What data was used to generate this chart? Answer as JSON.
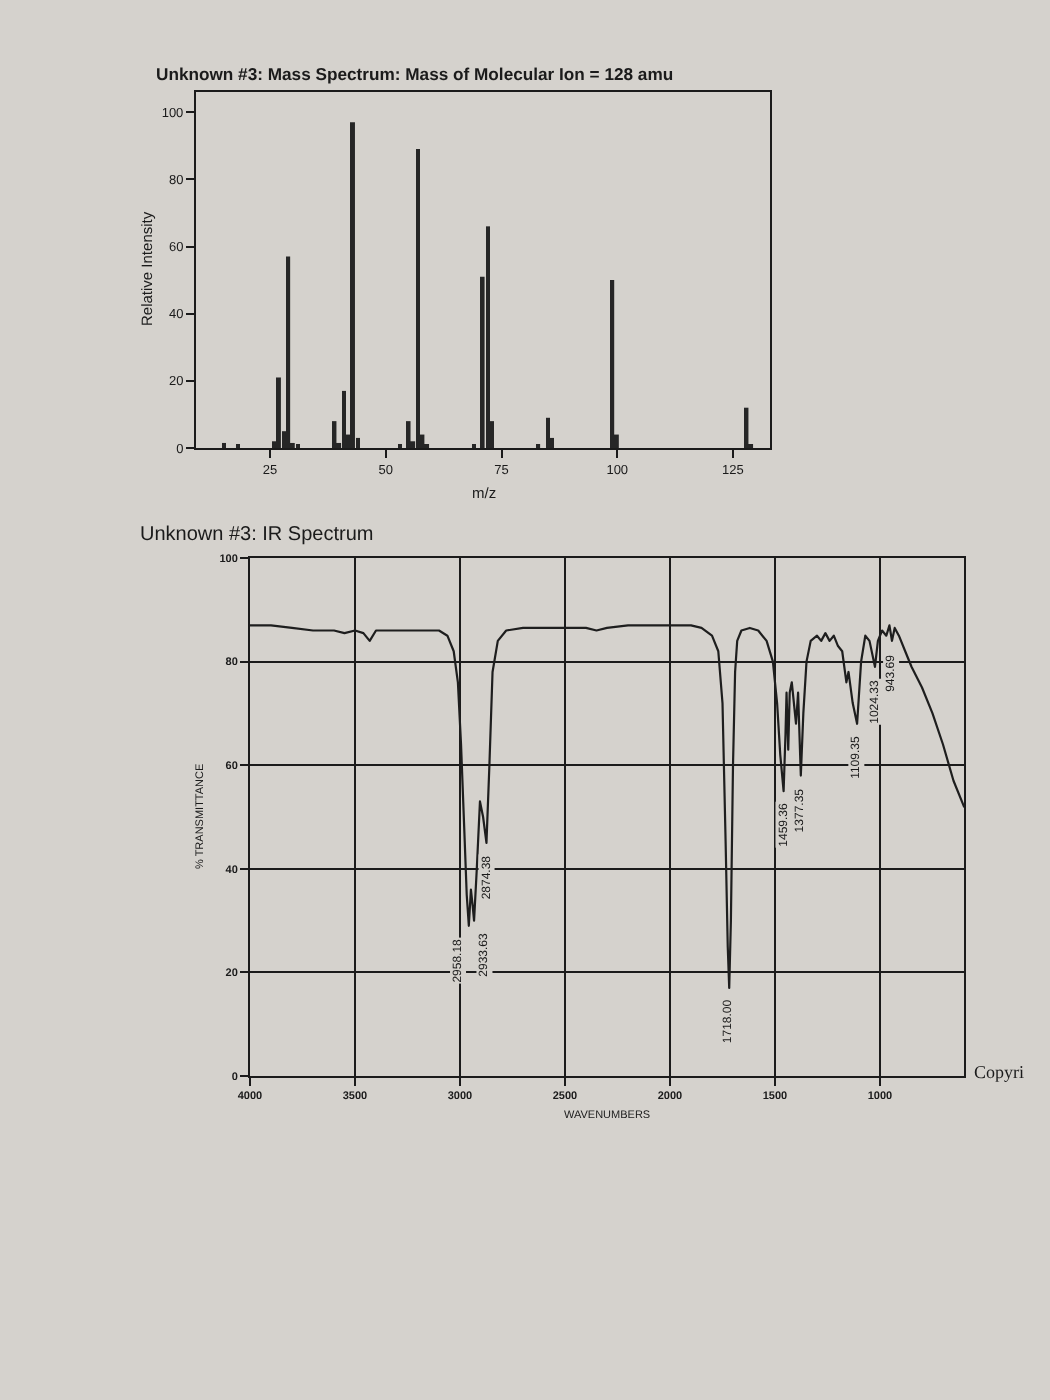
{
  "chart_data": [
    {
      "type": "bar",
      "title": "Unknown #3: Mass Spectrum: Mass of Molecular Ion = 128 amu",
      "xlabel": "m/z",
      "ylabel": "Relative Intensity",
      "x": [
        15,
        18,
        26,
        27,
        28,
        29,
        30,
        31,
        39,
        40,
        41,
        42,
        43,
        44,
        53,
        55,
        56,
        57,
        58,
        59,
        69,
        71,
        72,
        73,
        83,
        85,
        86,
        99,
        100,
        128,
        129
      ],
      "values": [
        1.5,
        1,
        2,
        21,
        5,
        57,
        1.5,
        1,
        8,
        1.5,
        17,
        4,
        97,
        3,
        1,
        8,
        2,
        89,
        4,
        1,
        1,
        51,
        66,
        8,
        1,
        9,
        3,
        50,
        4,
        12,
        1
      ],
      "color": "#262626",
      "xlim": [
        9,
        133
      ],
      "xticks": [
        25,
        50,
        75,
        100,
        125
      ],
      "ylim": [
        0,
        106
      ],
      "yticks": [
        0,
        20,
        40,
        60,
        80,
        100
      ]
    },
    {
      "type": "line",
      "title": "Unknown #3: IR Spectrum",
      "xlabel": "WAVENUMBERS",
      "ylabel": "% TRANSMITTANCE",
      "x": [
        4000,
        3900,
        3800,
        3700,
        3600,
        3550,
        3500,
        3460,
        3430,
        3400,
        3300,
        3200,
        3100,
        3060,
        3030,
        3010,
        2995,
        2980,
        2968,
        2958,
        2948,
        2940,
        2933,
        2920,
        2905,
        2890,
        2874,
        2860,
        2845,
        2820,
        2780,
        2700,
        2600,
        2500,
        2400,
        2350,
        2300,
        2200,
        2100,
        2000,
        1900,
        1850,
        1800,
        1770,
        1750,
        1735,
        1725,
        1718,
        1710,
        1700,
        1690,
        1680,
        1660,
        1620,
        1580,
        1540,
        1510,
        1490,
        1475,
        1459,
        1450,
        1445,
        1437,
        1430,
        1420,
        1400,
        1390,
        1377,
        1365,
        1350,
        1330,
        1300,
        1280,
        1260,
        1240,
        1220,
        1200,
        1180,
        1160,
        1150,
        1130,
        1109,
        1090,
        1070,
        1050,
        1024,
        1010,
        990,
        970,
        955,
        943,
        930,
        910,
        880,
        850,
        800,
        750,
        700,
        650,
        600
      ],
      "values": [
        87,
        87,
        86.5,
        86,
        86,
        85.5,
        86,
        85.5,
        84,
        86,
        86,
        86,
        86,
        85,
        82,
        76,
        64,
        48,
        35,
        29,
        36,
        33,
        30,
        40,
        53,
        50,
        45,
        60,
        78,
        84,
        86,
        86.5,
        86.5,
        86.5,
        86.5,
        86,
        86.5,
        87,
        87,
        87,
        87,
        86.5,
        85,
        82,
        72,
        45,
        25,
        17,
        30,
        60,
        78,
        84,
        86,
        86.5,
        86,
        84,
        80,
        72,
        62,
        55,
        66,
        74,
        63,
        74,
        76,
        68,
        74,
        58,
        70,
        80,
        84,
        85,
        84,
        85.5,
        84,
        85,
        83,
        82,
        76,
        78,
        72,
        68,
        80,
        85,
        84,
        79,
        84,
        86,
        85,
        87,
        84,
        86.5,
        85,
        82,
        79,
        75,
        70,
        64,
        57,
        52
      ],
      "color": "#1e1e1e",
      "xlim": [
        4000,
        600
      ],
      "xticks": [
        4000,
        3500,
        3000,
        2500,
        2000,
        1500,
        1000
      ],
      "ylim": [
        0,
        100
      ],
      "yticks": [
        0,
        20,
        40,
        60,
        80,
        100
      ],
      "grid": true,
      "annotations": [
        {
          "text": "2958.18",
          "x": 2958,
          "y": 29
        },
        {
          "text": "2933.63",
          "x": 2933,
          "y": 30
        },
        {
          "text": "2874.38",
          "x": 2874,
          "y": 45
        },
        {
          "text": "1718.00",
          "x": 1718,
          "y": 17
        },
        {
          "text": "1459.36",
          "x": 1459,
          "y": 55
        },
        {
          "text": "1377.35",
          "x": 1377,
          "y": 58
        },
        {
          "text": "1109.35",
          "x": 1109,
          "y": 68
        },
        {
          "text": "1024.33",
          "x": 1024,
          "y": 79
        },
        {
          "text": "943.69",
          "x": 943,
          "y": 84
        },
        "Copyri"
      ]
    }
  ]
}
